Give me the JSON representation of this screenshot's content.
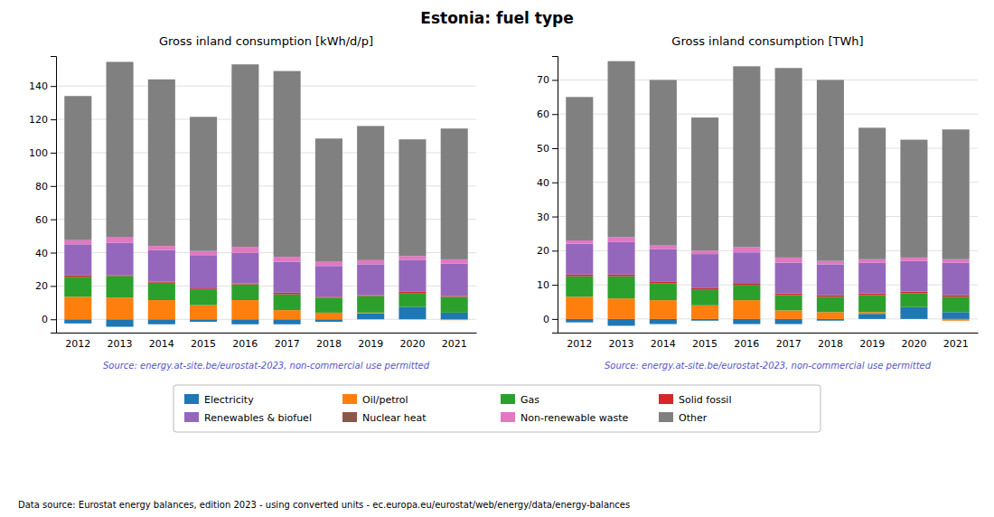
{
  "title": "Estonia: fuel type",
  "annotations": [
    "Data source: Eurostat energy balances, edition 2023 - using converted units - ec.europa.eu/eurostat/web/energy/data/energy-balances"
  ],
  "chart_data": [
    {
      "type": "bar",
      "title": "Gross inland consumption [kWh/d/p]",
      "stacked": true,
      "grid": true,
      "legend": "bottom",
      "annotations": [
        "Source: energy.at-site.be/eurostat-2023, non-commercial use permitted"
      ],
      "categories": [
        2012,
        2013,
        2014,
        2015,
        2016,
        2017,
        2018,
        2019,
        2020,
        2021
      ],
      "ylim": [
        -8,
        158
      ],
      "yticks": [
        0,
        20,
        40,
        60,
        80,
        100,
        120,
        140
      ],
      "series": [
        {
          "name": "Electricity",
          "color": "#1f77b4",
          "values": [
            -2.5,
            -4.5,
            -3.0,
            -1.5,
            -3.0,
            -3.0,
            -1.5,
            3.5,
            7.5,
            4.0
          ]
        },
        {
          "name": "Oil/petrol",
          "color": "#ff7f0e",
          "values": [
            13.5,
            13.0,
            11.5,
            8.5,
            11.5,
            5.5,
            4.0,
            0.5,
            0.0,
            -0.5
          ]
        },
        {
          "name": "Gas",
          "color": "#2ca02c",
          "values": [
            12.0,
            13.0,
            10.5,
            9.5,
            9.5,
            9.5,
            9.0,
            10.0,
            8.0,
            9.5
          ]
        },
        {
          "name": "Solid fossil",
          "color": "#d62728",
          "values": [
            1.0,
            0.5,
            0.5,
            0.5,
            0.5,
            1.0,
            0.5,
            0.5,
            1.0,
            0.5
          ]
        },
        {
          "name": "Renewables & biofuel",
          "color": "#9467bd",
          "values": [
            18.5,
            19.5,
            19.0,
            20.0,
            18.5,
            18.5,
            18.5,
            18.5,
            19.0,
            19.5
          ]
        },
        {
          "name": "Nuclear heat",
          "color": "#8c564b",
          "values": [
            0.0,
            0.0,
            0.0,
            0.0,
            0.0,
            0.0,
            0.0,
            0.0,
            0.0,
            0.0
          ]
        },
        {
          "name": "Non-renewable waste",
          "color": "#e377c2",
          "values": [
            2.5,
            3.5,
            2.5,
            2.5,
            3.5,
            3.0,
            2.5,
            2.5,
            2.5,
            2.5
          ]
        },
        {
          "name": "Other",
          "color": "#808080",
          "values": [
            86.5,
            105.0,
            100.0,
            80.5,
            109.5,
            111.5,
            74.0,
            80.5,
            70.0,
            78.5
          ]
        }
      ]
    },
    {
      "type": "bar",
      "title": "Gross inland consumption [TWh]",
      "stacked": true,
      "grid": true,
      "legend": "bottom",
      "annotations": [
        "Source: energy.at-site.be/eurostat-2023, non-commercial use permitted"
      ],
      "categories": [
        2012,
        2013,
        2014,
        2015,
        2016,
        2017,
        2018,
        2019,
        2020,
        2021
      ],
      "ylim": [
        -4,
        77
      ],
      "yticks": [
        0,
        10,
        20,
        30,
        40,
        50,
        60,
        70
      ],
      "series": [
        {
          "name": "Electricity",
          "color": "#1f77b4",
          "values": [
            -1.0,
            -2.0,
            -1.5,
            -0.5,
            -1.5,
            -1.5,
            -0.5,
            1.5,
            3.5,
            2.0
          ]
        },
        {
          "name": "Oil/petrol",
          "color": "#ff7f0e",
          "values": [
            6.5,
            6.0,
            5.5,
            4.0,
            5.5,
            2.5,
            2.0,
            0.5,
            0.0,
            -0.5
          ]
        },
        {
          "name": "Gas",
          "color": "#2ca02c",
          "values": [
            6.0,
            6.5,
            5.0,
            4.5,
            4.5,
            4.5,
            4.5,
            5.0,
            4.0,
            4.5
          ]
        },
        {
          "name": "Solid fossil",
          "color": "#d62728",
          "values": [
            0.5,
            0.5,
            0.5,
            0.5,
            0.5,
            0.5,
            0.5,
            0.5,
            0.5,
            0.5
          ]
        },
        {
          "name": "Renewables & biofuel",
          "color": "#9467bd",
          "values": [
            9.0,
            9.5,
            9.5,
            10.0,
            9.0,
            9.0,
            9.0,
            9.0,
            9.0,
            9.5
          ]
        },
        {
          "name": "Nuclear heat",
          "color": "#8c564b",
          "values": [
            0.0,
            0.0,
            0.0,
            0.0,
            0.0,
            0.0,
            0.0,
            0.0,
            0.0,
            0.0
          ]
        },
        {
          "name": "Non-renewable waste",
          "color": "#e377c2",
          "values": [
            1.0,
            1.5,
            1.0,
            1.0,
            1.5,
            1.5,
            1.0,
            1.0,
            1.0,
            1.0
          ]
        },
        {
          "name": "Other",
          "color": "#808080",
          "values": [
            42.0,
            51.5,
            48.5,
            39.0,
            53.0,
            55.5,
            53.0,
            38.5,
            34.5,
            38.0
          ]
        }
      ]
    }
  ]
}
